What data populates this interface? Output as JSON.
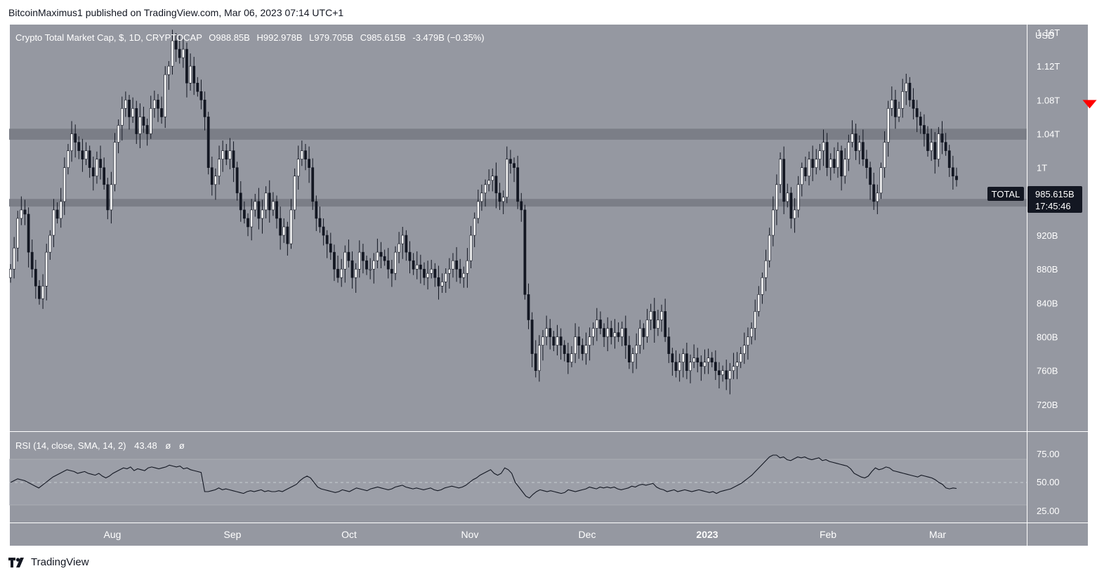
{
  "publisher_line": "BitcoinMaximus1 published on TradingView.com, Mar 06, 2023 07:14 UTC+1",
  "brand": {
    "label": "TradingView",
    "icon": "tradingview-logo-icon"
  },
  "colors": {
    "panel_bg": "#9598a1",
    "frame": "#ffffff",
    "candle_up": "#ffffff",
    "candle_down": "#131722",
    "zone": "#7b7e87",
    "signal_arrow": "#ff0000",
    "label_bg": "#131722"
  },
  "header": {
    "symbol_name": "Crypto Total Market Cap, $, 1D, CRYPTOCAP",
    "o_label": "O",
    "o_value": "988.85B",
    "h_label": "H",
    "h_value": "992.978B",
    "l_label": "L",
    "l_value": "979.705B",
    "c_label": "C",
    "c_value": "985.615B",
    "change": "-3.479B (−0.35%)"
  },
  "price_scale": {
    "currency": "USD",
    "ticks": [
      "1.16T",
      "1.12T",
      "1.08T",
      "1.04T",
      "1T",
      "960B",
      "920B",
      "880B",
      "840B",
      "800B",
      "760B",
      "720B"
    ]
  },
  "last_price": {
    "series_label": "TOTAL",
    "value": "985.615B",
    "countdown": "17:45:46"
  },
  "rsi": {
    "legend": "RSI (14, close, SMA, 14, 2)",
    "value": "43.48",
    "ma_value_1": "ø",
    "ma_value_2": "ø",
    "ticks": [
      "75.00",
      "50.00",
      "25.00"
    ]
  },
  "time_axis": {
    "labels": [
      "Aug",
      "Sep",
      "Oct",
      "Nov",
      "Dec",
      "2023",
      "Feb",
      "Mar"
    ]
  },
  "chart_data": [
    {
      "type": "candlestick",
      "title": "Crypto Total Market Cap, $, 1D, CRYPTOCAP",
      "ylabel": "USD",
      "y_unit": "B",
      "ylim": [
        700,
        1160
      ],
      "x_labels": [
        "Aug",
        "Sep",
        "Oct",
        "Nov",
        "Dec",
        "2023",
        "Feb",
        "Mar"
      ],
      "grid": false,
      "horizontal_zones": [
        {
          "low": 1033,
          "high": 1046
        },
        {
          "low": 954,
          "high": 963
        }
      ],
      "annotations": [
        {
          "type": "down-arrow",
          "at_index": 300,
          "price": 1070
        }
      ],
      "last_value": 985.615,
      "closes": [
        880,
        905,
        940,
        950,
        945,
        900,
        880,
        860,
        845,
        860,
        900,
        920,
        950,
        940,
        960,
        1000,
        1020,
        1040,
        1030,
        1020,
        1010,
        1020,
        1000,
        990,
        1010,
        1000,
        980,
        950,
        980,
        1030,
        1050,
        1070,
        1080,
        1060,
        1070,
        1040,
        1060,
        1050,
        1040,
        1070,
        1080,
        1070,
        1060,
        1110,
        1120,
        1150,
        1140,
        1130,
        1140,
        1100,
        1120,
        1100,
        1090,
        1080,
        1060,
        1000,
        980,
        990,
        1010,
        1020,
        1010,
        1020,
        1000,
        970,
        950,
        940,
        930,
        950,
        960,
        940,
        950,
        970,
        950,
        960,
        940,
        920,
        930,
        910,
        950,
        990,
        1010,
        1020,
        1010,
        1000,
        960,
        940,
        930,
        920,
        910,
        900,
        880,
        870,
        880,
        900,
        890,
        870,
        880,
        900,
        890,
        880,
        880,
        890,
        900,
        895,
        890,
        880,
        875,
        900,
        910,
        920,
        900,
        890,
        880,
        885,
        880,
        870,
        875,
        880,
        870,
        860,
        865,
        875,
        880,
        890,
        880,
        870,
        875,
        890,
        920,
        940,
        960,
        970,
        980,
        985,
        990,
        970,
        960,
        965,
        1010,
        1005,
        1000,
        960,
        950,
        850,
        820,
        780,
        760,
        790,
        800,
        810,
        800,
        790,
        800,
        790,
        780,
        770,
        780,
        800,
        790,
        780,
        790,
        800,
        810,
        820,
        810,
        800,
        810,
        800,
        805,
        800,
        810,
        790,
        770,
        780,
        790,
        810,
        800,
        820,
        830,
        810,
        820,
        830,
        800,
        780,
        770,
        760,
        770,
        780,
        760,
        770,
        775,
        770,
        765,
        770,
        775,
        770,
        760,
        755,
        760,
        750,
        760,
        765,
        770,
        780,
        790,
        800,
        810,
        830,
        850,
        870,
        890,
        920,
        950,
        980,
        1010,
        960,
        970,
        940,
        950,
        980,
        1000,
        990,
        1010,
        1000,
        1010,
        1020,
        1030,
        1000,
        1010,
        1000,
        1020,
        990,
        1010,
        1030,
        1040,
        1020,
        1030,
        1010,
        1000,
        980,
        960,
        970,
        1000,
        1030,
        1070,
        1080,
        1060,
        1070,
        1090,
        1100,
        1080,
        1070,
        1060,
        1050,
        1040,
        1020,
        1030,
        1010,
        1040,
        1030,
        1020,
        1000,
        990,
        985.615
      ],
      "rsi_values": [
        50,
        52,
        54,
        53,
        52,
        50,
        48,
        46,
        44,
        47,
        50,
        53,
        56,
        58,
        60,
        62,
        64,
        63,
        62,
        60,
        61,
        62,
        60,
        59,
        58,
        60,
        57,
        55,
        57,
        60,
        62,
        64,
        66,
        65,
        67,
        63,
        65,
        64,
        63,
        66,
        67,
        66,
        65,
        66,
        67,
        69,
        68,
        67,
        68,
        65,
        66,
        64,
        63,
        62,
        61,
        40,
        40,
        41,
        42,
        44,
        42,
        43,
        42,
        41,
        40,
        39,
        38,
        40,
        41,
        40,
        41,
        42,
        40,
        41,
        40,
        40,
        41,
        40,
        42,
        44,
        46,
        48,
        52,
        55,
        57,
        55,
        50,
        45,
        43,
        42,
        41,
        40,
        39,
        40,
        42,
        41,
        40,
        42,
        44,
        43,
        42,
        41,
        43,
        44,
        45,
        44,
        43,
        42,
        43,
        45,
        46,
        47,
        45,
        44,
        43,
        44,
        43,
        42,
        43,
        44,
        42,
        41,
        42,
        44,
        45,
        46,
        45,
        44,
        45,
        47,
        50,
        53,
        55,
        58,
        60,
        62,
        64,
        60,
        58,
        60,
        66,
        64,
        60,
        50,
        45,
        40,
        35,
        33,
        37,
        40,
        42,
        41,
        40,
        41,
        40,
        39,
        38,
        39,
        42,
        41,
        40,
        41,
        42,
        43,
        45,
        44,
        43,
        45,
        44,
        45,
        44,
        45,
        43,
        42,
        43,
        44,
        46,
        45,
        47,
        48,
        47,
        48,
        49,
        45,
        43,
        42,
        40,
        41,
        42,
        40,
        41,
        42,
        41,
        40,
        41,
        42,
        41,
        40,
        39,
        40,
        38,
        40,
        41,
        42,
        43,
        45,
        47,
        49,
        52,
        55,
        58,
        62,
        66,
        70,
        74,
        78,
        80,
        80,
        77,
        78,
        75,
        74,
        76,
        78,
        77,
        78,
        76,
        75,
        76,
        77,
        74,
        75,
        73,
        72,
        71,
        70,
        69,
        68,
        65,
        60,
        58,
        56,
        55,
        57,
        62,
        66,
        64,
        65,
        67,
        66,
        63,
        62,
        61,
        60,
        59,
        58,
        57,
        56,
        58,
        57,
        56,
        55,
        53,
        50,
        48,
        44,
        43,
        44,
        43.48
      ]
    }
  ]
}
